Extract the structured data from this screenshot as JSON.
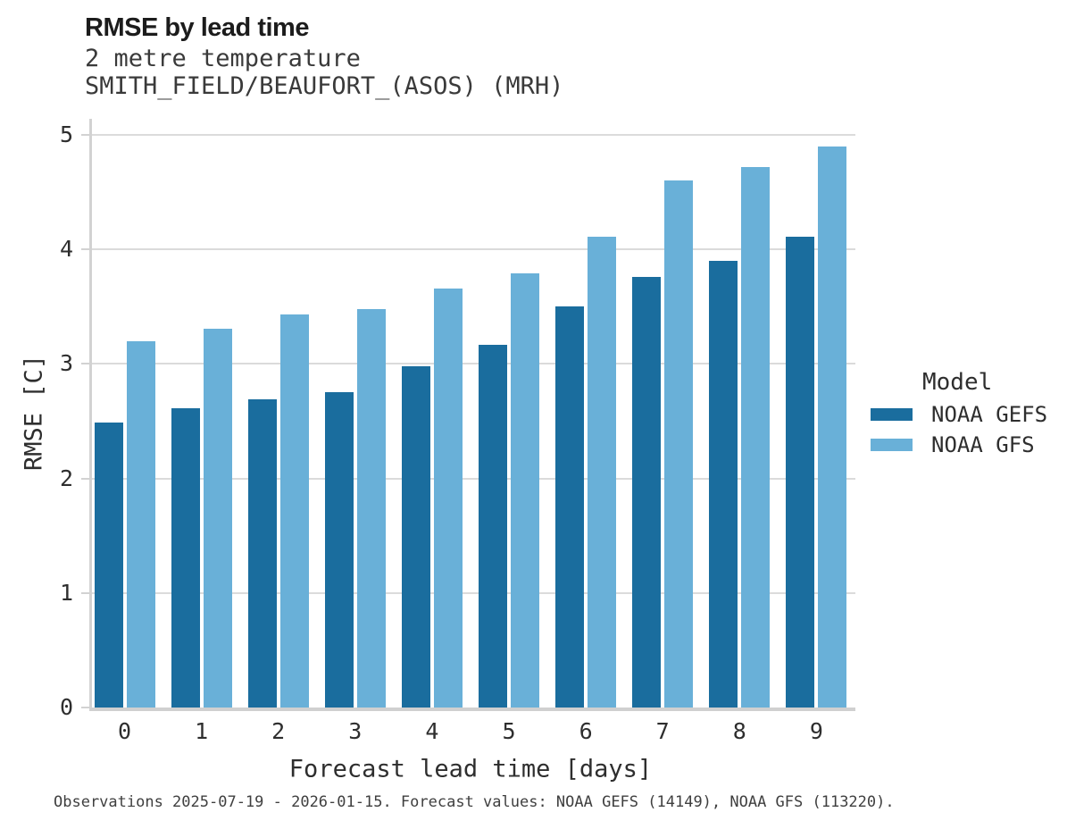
{
  "header": {
    "title": "RMSE by lead time",
    "subtitle_line1": "2 metre temperature",
    "subtitle_line2": "SMITH_FIELD/BEAUFORT_(ASOS) (MRH)"
  },
  "chart_data": {
    "type": "bar",
    "title": "RMSE by lead time",
    "subtitle": [
      "2 metre temperature",
      "SMITH_FIELD/BEAUFORT_(ASOS) (MRH)"
    ],
    "categories": [
      "0",
      "1",
      "2",
      "3",
      "4",
      "5",
      "6",
      "7",
      "8",
      "9"
    ],
    "series": [
      {
        "name": "NOAA GEFS",
        "color": "#1a6d9e",
        "values": [
          2.49,
          2.61,
          2.69,
          2.75,
          2.98,
          3.17,
          3.5,
          3.76,
          3.9,
          4.11
        ]
      },
      {
        "name": "NOAA GFS",
        "color": "#69b0d8",
        "values": [
          3.2,
          3.31,
          3.43,
          3.48,
          3.66,
          3.79,
          4.11,
          4.6,
          4.72,
          4.9
        ]
      }
    ],
    "xlabel": "Forecast lead time [days]",
    "ylabel": "RMSE [C]",
    "ylim": [
      0,
      5.14
    ],
    "yticks": [
      0,
      1,
      2,
      3,
      4,
      5
    ],
    "grid": "horizontal-only",
    "legend_title": "Model",
    "legend_position": "right",
    "background_color": "#ffffff",
    "gridline_color": "#dbdbdb",
    "axis_color": "#d2d2d2"
  },
  "caption": "Observations 2025-07-19 - 2026-01-15. Forecast values: NOAA GEFS (14149), NOAA GFS (113220)."
}
